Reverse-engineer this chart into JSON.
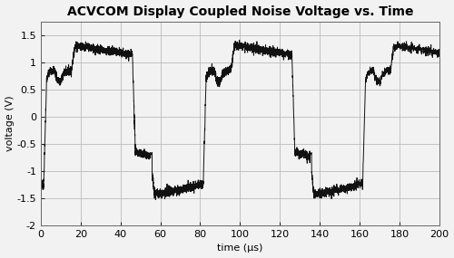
{
  "title": "ACVCOM Display Coupled Noise Voltage vs. Time",
  "xlabel": "time (μs)",
  "ylabel": "voltage (V)",
  "xlim": [
    0,
    200
  ],
  "ylim": [
    -2,
    1.75
  ],
  "xticks": [
    0,
    20,
    40,
    60,
    80,
    100,
    120,
    140,
    160,
    180,
    200
  ],
  "yticks": [
    -2,
    -1.5,
    -1,
    -0.5,
    0,
    0.5,
    1,
    1.5
  ],
  "background_color": "#f0f0f0",
  "line_color": "#111111",
  "grid_color": "#bbbbbb",
  "title_fontsize": 10,
  "label_fontsize": 8,
  "tick_fontsize": 8,
  "noise_amplitude": 0.04
}
